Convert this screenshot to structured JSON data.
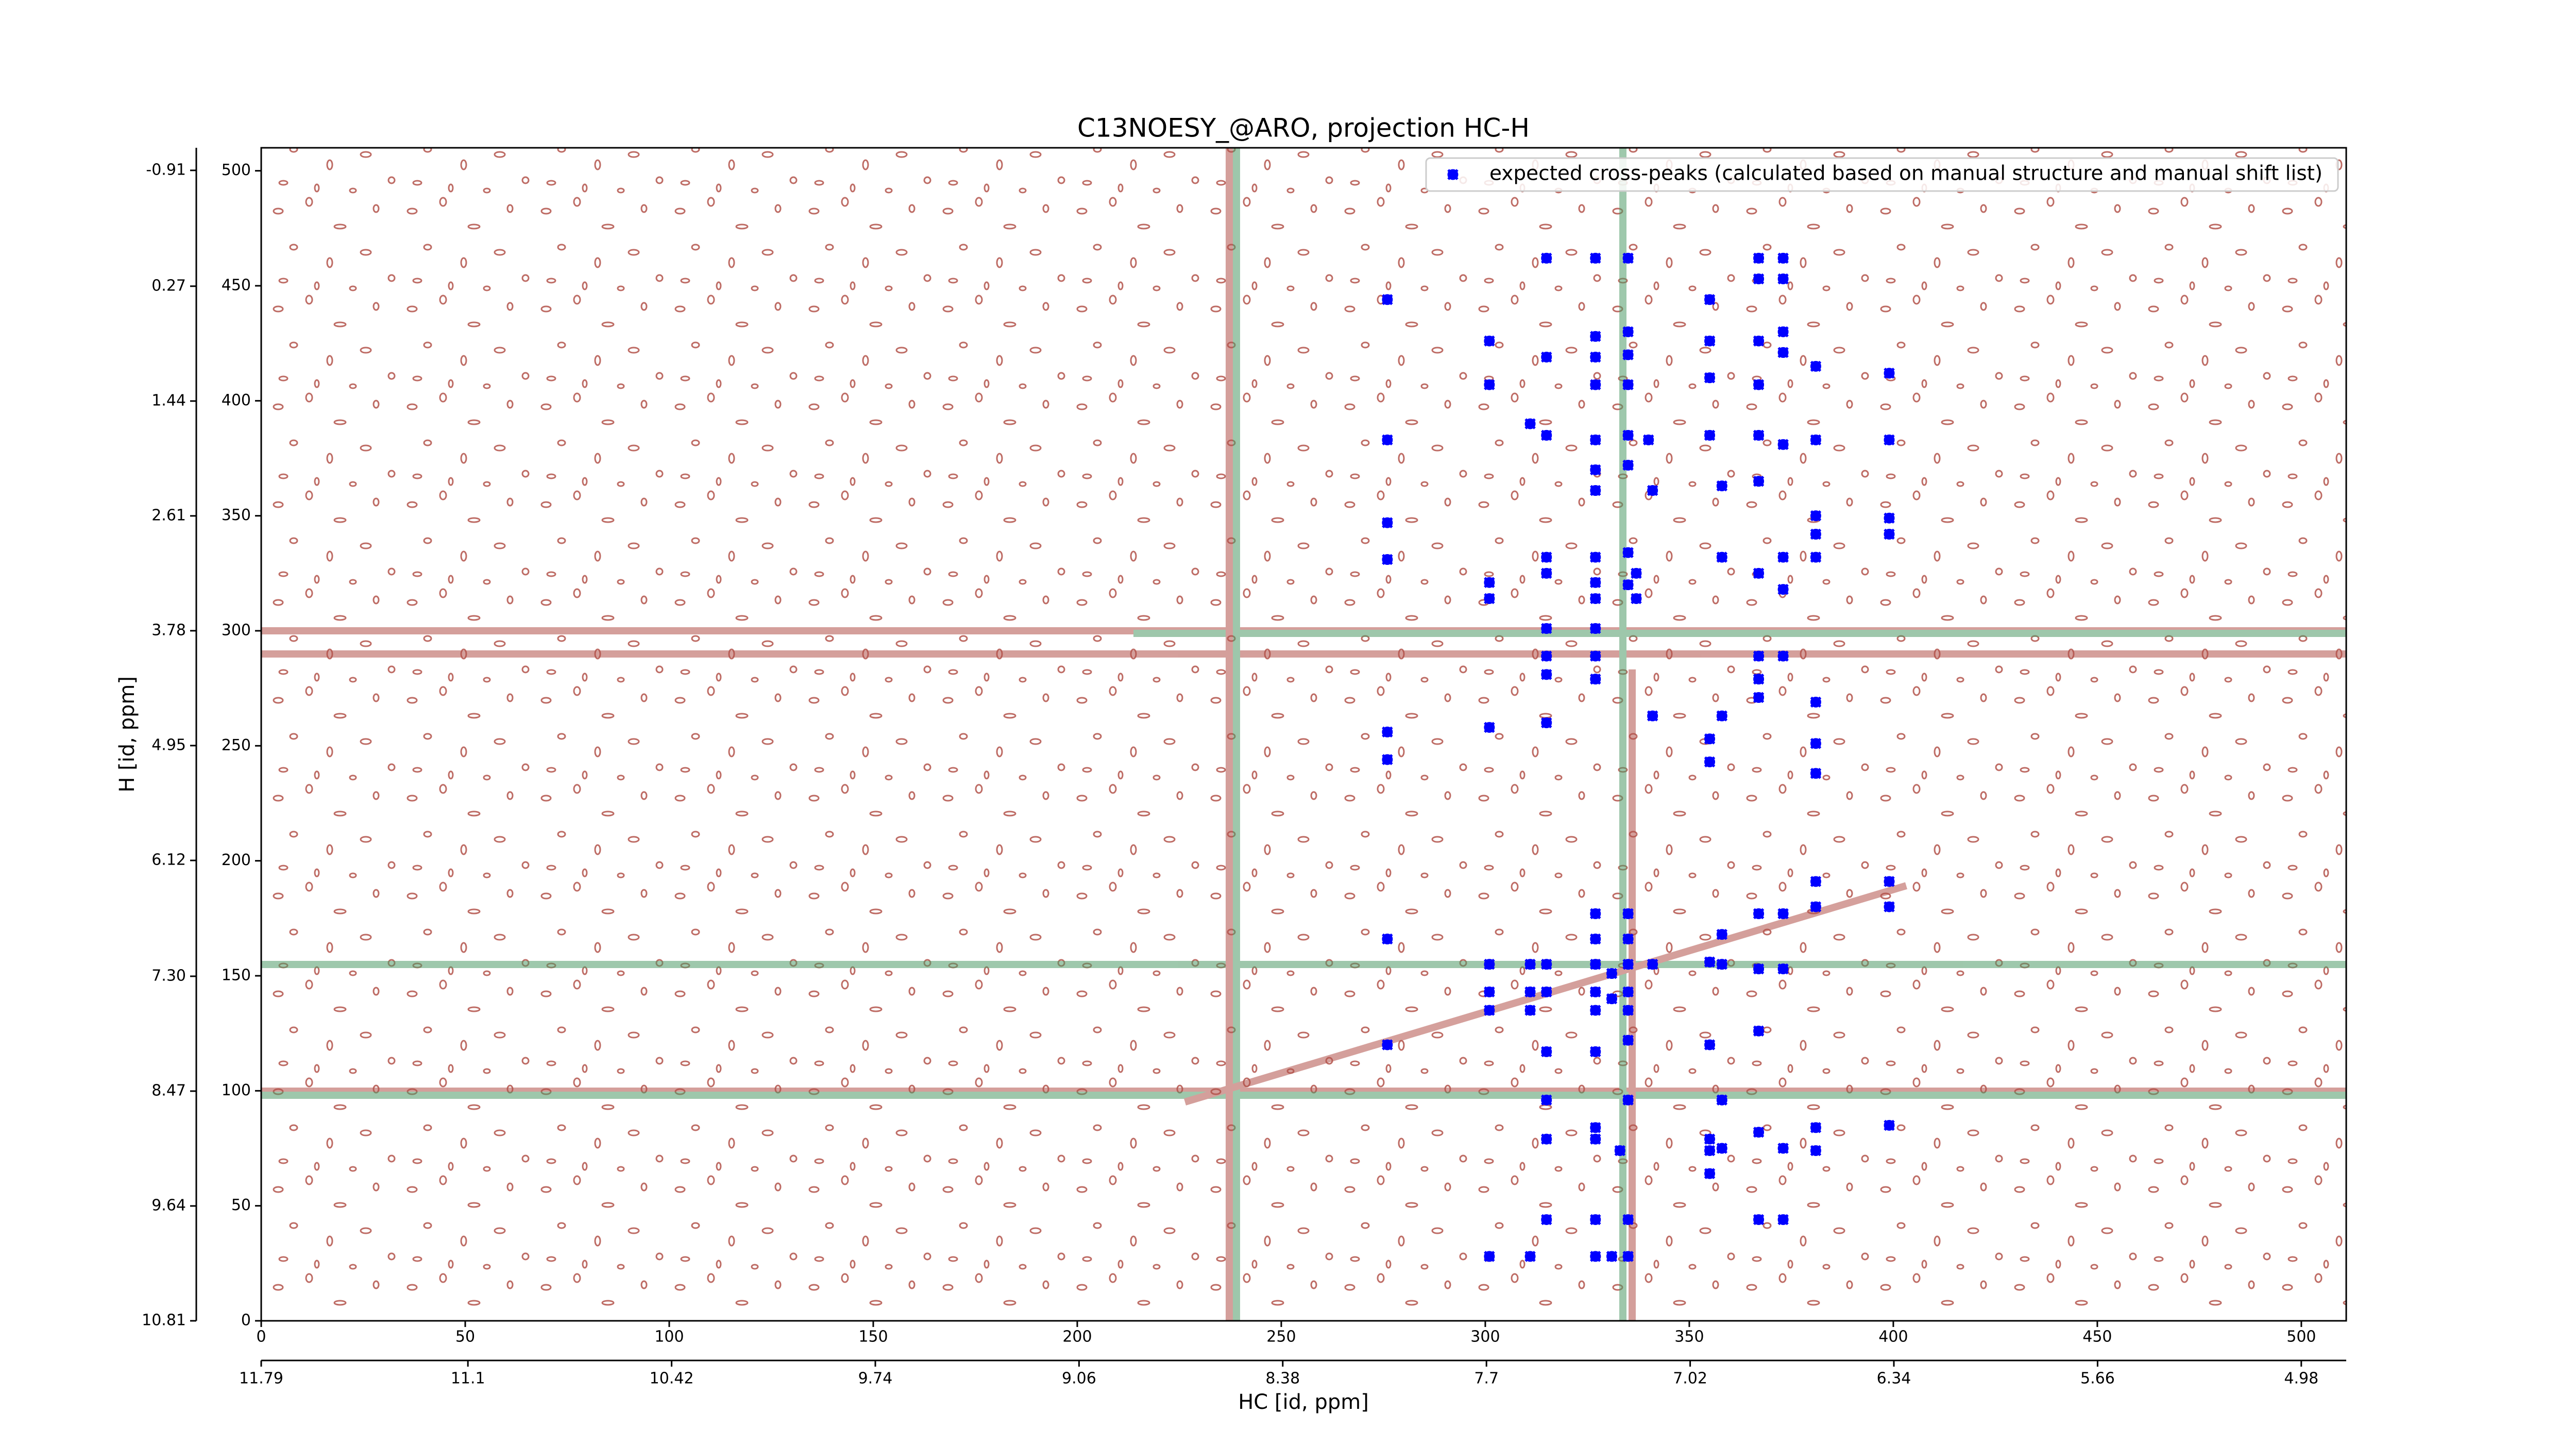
{
  "chart_data": {
    "type": "scatter",
    "title": "C13NOESY_@ARO, projection HC-H",
    "xlabel": "HC [id, ppm]",
    "ylabel": "H [id, ppm]",
    "xlim": [
      0,
      511
    ],
    "ylim": [
      0,
      510
    ],
    "xticks": [
      0,
      50,
      100,
      150,
      200,
      250,
      300,
      350,
      400,
      450,
      500
    ],
    "yticks": [
      0,
      50,
      100,
      150,
      200,
      250,
      300,
      350,
      400,
      450,
      500
    ],
    "x2lim": [
      11.79,
      4.83
    ],
    "x2ticks": [
      11.79,
      11.1,
      10.42,
      9.74,
      9.06,
      8.38,
      7.7,
      7.02,
      6.34,
      5.66,
      4.98
    ],
    "y2lim": [
      10.81,
      -1.14
    ],
    "y2ticks": [
      10.81,
      9.64,
      8.47,
      {
        "value": 7.3,
        "label": "7.30"
      },
      6.12,
      4.95,
      3.78,
      2.61,
      1.44,
      0.27,
      -0.91
    ],
    "legend_position": "upper right",
    "series": [
      {
        "name": "expected cross-peaks (calculated based on manual structure and manual shift list)",
        "color": "#0000ff",
        "x": [
          315,
          327,
          335,
          367,
          373,
          276,
          355,
          367,
          373,
          301,
          315,
          327,
          327,
          335,
          335,
          355,
          367,
          373,
          373,
          381,
          301,
          327,
          335,
          355,
          367,
          399,
          276,
          311,
          315,
          327,
          335,
          340,
          355,
          367,
          373,
          381,
          399,
          327,
          335,
          327,
          341,
          358,
          367,
          276,
          381,
          381,
          399,
          399,
          276,
          315,
          327,
          335,
          358,
          373,
          381,
          301,
          315,
          327,
          335,
          337,
          367,
          373,
          301,
          327,
          337,
          315,
          327,
          315,
          315,
          327,
          327,
          367,
          373,
          367,
          301,
          315,
          341,
          358,
          367,
          381,
          276,
          276,
          355,
          355,
          381,
          381,
          381,
          399,
          381,
          399,
          367,
          373,
          358,
          327,
          335,
          327,
          335,
          276,
          301,
          311,
          315,
          327,
          331,
          335,
          341,
          358,
          367,
          373,
          301,
          311,
          315,
          327,
          331,
          335,
          355,
          301,
          311,
          327,
          335,
          276,
          315,
          327,
          335,
          355,
          367,
          315,
          335,
          358,
          355,
          367,
          381,
          399,
          315,
          327,
          327,
          333,
          355,
          358,
          373,
          381,
          355,
          315,
          327,
          335,
          367,
          373,
          301,
          311,
          327,
          331,
          335
        ],
        "values": [
          462,
          462,
          462,
          462,
          462,
          444,
          444,
          453,
          453,
          426,
          419,
          428,
          419,
          430,
          420,
          426,
          426,
          430,
          421,
          415,
          407,
          407,
          407,
          410,
          407,
          412,
          383,
          390,
          385,
          383,
          385,
          383,
          385,
          385,
          381,
          383,
          383,
          370,
          372,
          361,
          361,
          363,
          365,
          347,
          350,
          342,
          349,
          342,
          331,
          332,
          332,
          334,
          332,
          332,
          332,
          321,
          325,
          321,
          320,
          325,
          325,
          318,
          314,
          314,
          314,
          301,
          301,
          289,
          281,
          289,
          279,
          289,
          289,
          279,
          258,
          260,
          263,
          263,
          271,
          269,
          256,
          244,
          253,
          243,
          251,
          238,
          191,
          191,
          180,
          180,
          177,
          177,
          168,
          177,
          177,
          166,
          166,
          166,
          155,
          155,
          155,
          155,
          151,
          155,
          155,
          155,
          153,
          153,
          143,
          143,
          143,
          143,
          140,
          143,
          156,
          135,
          135,
          135,
          135,
          120,
          117,
          117,
          122,
          120,
          126,
          96,
          96,
          96,
          79,
          82,
          84,
          85,
          79,
          84,
          79,
          74,
          74,
          75,
          75,
          74,
          64,
          44,
          44,
          44,
          44,
          44,
          28,
          28,
          28,
          28,
          28
        ]
      }
    ]
  }
}
